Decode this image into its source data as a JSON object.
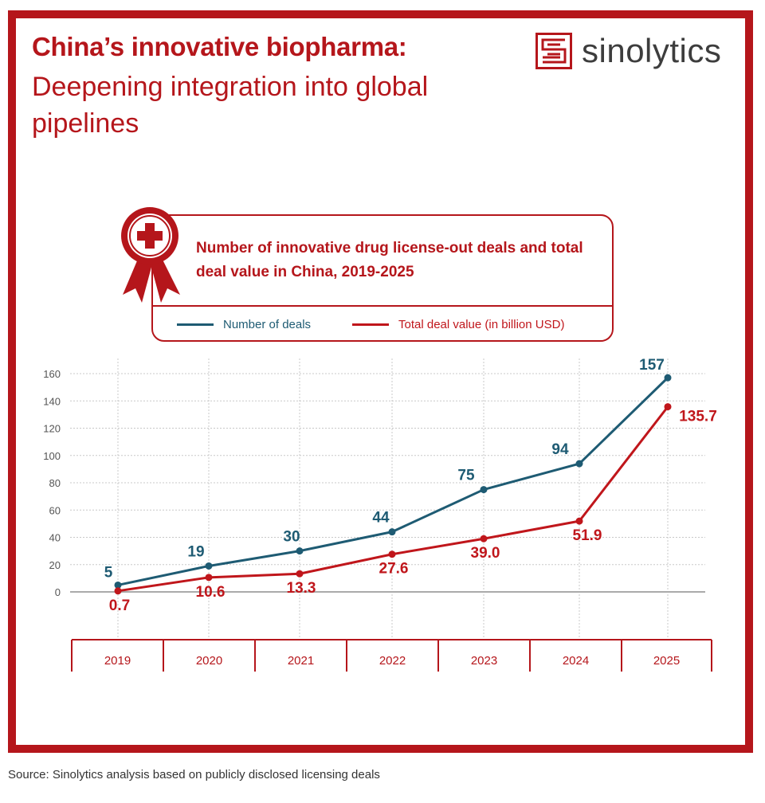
{
  "header": {
    "title_bold": "China’s innovative biopharma:",
    "title_light": "Deepening integration into global pipelines"
  },
  "logo": {
    "text": "sinolytics"
  },
  "colors": {
    "brand_red": "#b5161b",
    "deals_blue": "#1e5b73",
    "value_red": "#c0161b"
  },
  "footer": {
    "source": "Source: Sinolytics analysis based on publicly disclosed licensing deals"
  },
  "chart_data": {
    "type": "line",
    "title": "Number of innovative drug license-out deals and total deal value in China, 2019-2025",
    "categories": [
      "2019",
      "2020",
      "2021",
      "2022",
      "2023",
      "2024",
      "2025"
    ],
    "series": [
      {
        "name": "Number of deals",
        "values": [
          5,
          19,
          30,
          44,
          75,
          94,
          157
        ],
        "labels": [
          "5",
          "19",
          "30",
          "44",
          "75",
          "94",
          "157"
        ],
        "color": "#1e5b73"
      },
      {
        "name": "Total deal value (in billion USD)",
        "values": [
          0.7,
          10.6,
          13.3,
          27.6,
          39.0,
          51.9,
          135.7
        ],
        "labels": [
          "0.7",
          "10.6",
          "13.3",
          "27.6",
          "39.0",
          "51.9",
          "135.7"
        ],
        "color": "#c0161b"
      }
    ],
    "yticks": [
      "0",
      "20",
      "40",
      "60",
      "80",
      "100",
      "120",
      "140",
      "160"
    ],
    "ylim": [
      0,
      160
    ],
    "grid": true,
    "legend_position": "top"
  }
}
